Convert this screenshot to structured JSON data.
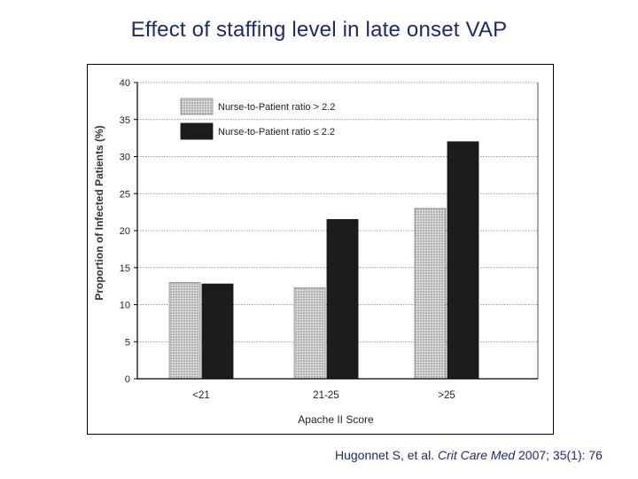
{
  "slide": {
    "title": "Effect of staffing level in late onset VAP"
  },
  "citation": {
    "authors": "Hugonnet S, et al. ",
    "journal": "Crit Care Med",
    "details": " 2007; 35(1): 76"
  },
  "chart_data": {
    "type": "bar",
    "categories": [
      "<21",
      "21-25",
      ">25"
    ],
    "series": [
      {
        "name": "Nurse-to-Patient ratio > 2.2",
        "values": [
          13,
          12.3,
          23
        ],
        "color": "#bdbdbd",
        "pattern": "dotted"
      },
      {
        "name": "Nurse-to-Patient ratio ≤ 2.2",
        "values": [
          12.8,
          21.5,
          32
        ],
        "color": "#1c1c1c",
        "pattern": "solid"
      }
    ],
    "title": "",
    "xlabel": "Apache II Score",
    "ylabel": "Proportion of Infected Patients (%)",
    "ylim": [
      0,
      40
    ],
    "yticks": [
      0,
      5,
      10,
      15,
      20,
      25,
      30,
      35,
      40
    ],
    "grid": "horizontal-dotted",
    "legend_position": "top-left"
  }
}
